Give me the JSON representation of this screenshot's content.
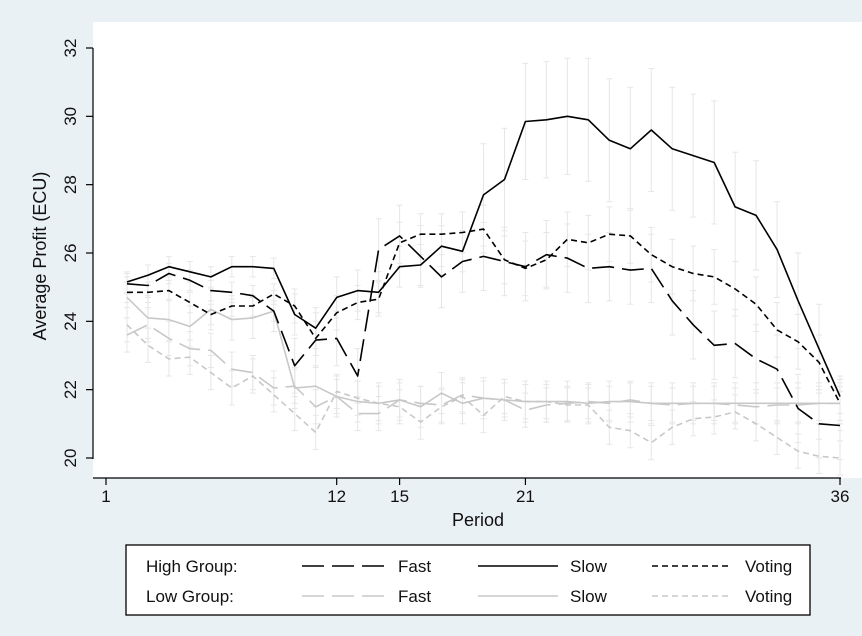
{
  "chart_data": {
    "type": "line",
    "title": "",
    "xlabel": "Period",
    "ylabel": "Average Profit (ECU)",
    "xlim": [
      1,
      36
    ],
    "ylim": [
      20,
      32
    ],
    "x_ticks": [
      1,
      12,
      15,
      21,
      36
    ],
    "y_ticks": [
      20,
      22,
      24,
      26,
      28,
      30,
      32
    ],
    "grid": false,
    "x": [
      2,
      3,
      4,
      5,
      6,
      7,
      8,
      9,
      10,
      11,
      12,
      13,
      14,
      15,
      16,
      17,
      18,
      19,
      20,
      21,
      22,
      23,
      24,
      25,
      26,
      27,
      28,
      29,
      30,
      31,
      32,
      33,
      34,
      35,
      36
    ],
    "series": [
      {
        "group": "High",
        "treatment": "Fast",
        "color": "#000000",
        "dash": "long",
        "values": [
          25.1,
          25.05,
          25.4,
          25.2,
          24.9,
          24.85,
          24.75,
          24.3,
          22.7,
          23.45,
          23.5,
          22.4,
          26.1,
          26.5,
          25.9,
          25.3,
          25.75,
          25.9,
          25.75,
          25.6,
          25.95,
          25.85,
          25.55,
          25.6,
          25.5,
          25.55,
          24.6,
          23.9,
          23.3,
          23.35,
          22.9,
          22.6,
          21.45,
          21.0,
          20.95
        ],
        "error": [
          0.3,
          0.3,
          0.3,
          0.3,
          0.3,
          0.3,
          0.3,
          0.3,
          0.8,
          0.8,
          0.8,
          0.8,
          0.9,
          0.9,
          0.9,
          0.9,
          0.9,
          1.0,
          1.0,
          1.0,
          1.0,
          1.0,
          1.0,
          1.0,
          1.0,
          1.0,
          1.0,
          1.0,
          1.0,
          1.0,
          1.0,
          1.0,
          1.0,
          1.0,
          1.0
        ]
      },
      {
        "group": "High",
        "treatment": "Slow",
        "color": "#000000",
        "dash": "solid",
        "values": [
          25.15,
          25.35,
          25.6,
          25.45,
          25.3,
          25.6,
          25.6,
          25.55,
          24.2,
          23.8,
          24.7,
          24.9,
          24.85,
          25.6,
          25.65,
          26.2,
          26.05,
          27.7,
          28.15,
          29.85,
          29.9,
          30.0,
          29.9,
          29.3,
          29.05,
          29.6,
          29.05,
          28.85,
          28.65,
          27.35,
          27.1,
          26.1,
          24.6,
          23.2,
          21.8
        ],
        "error": [
          0.3,
          0.3,
          0.3,
          0.3,
          0.3,
          0.3,
          0.3,
          0.3,
          0.6,
          0.6,
          0.6,
          0.6,
          0.6,
          0.6,
          0.6,
          0.6,
          0.6,
          1.5,
          1.5,
          1.7,
          1.7,
          1.7,
          1.8,
          1.8,
          1.8,
          1.8,
          1.8,
          1.8,
          1.8,
          1.6,
          1.6,
          1.4,
          1.4,
          1.3,
          0.5
        ]
      },
      {
        "group": "High",
        "treatment": "Voting",
        "color": "#000000",
        "dash": "short",
        "values": [
          24.85,
          24.85,
          24.9,
          24.55,
          24.2,
          24.45,
          24.45,
          24.8,
          24.45,
          23.5,
          24.25,
          24.55,
          24.65,
          26.3,
          26.55,
          26.55,
          26.6,
          26.7,
          25.8,
          25.55,
          25.8,
          26.4,
          26.3,
          26.55,
          26.5,
          25.95,
          25.6,
          25.4,
          25.3,
          24.95,
          24.5,
          23.75,
          23.4,
          22.8,
          21.6
        ],
        "error": [
          0.3,
          0.3,
          0.3,
          0.3,
          0.3,
          0.3,
          0.3,
          0.3,
          0.5,
          0.5,
          0.5,
          0.5,
          0.5,
          0.6,
          0.6,
          0.6,
          0.6,
          0.7,
          0.7,
          0.8,
          0.8,
          0.8,
          0.8,
          0.8,
          0.8,
          0.8,
          0.8,
          0.8,
          0.8,
          0.8,
          0.8,
          0.8,
          0.8,
          0.8,
          0.8
        ]
      },
      {
        "group": "Low",
        "treatment": "Fast",
        "color": "#c8c8c8",
        "dash": "long",
        "values": [
          23.6,
          23.9,
          23.5,
          23.2,
          23.15,
          22.6,
          22.5,
          22.05,
          22.1,
          21.5,
          21.8,
          21.3,
          21.3,
          21.7,
          21.6,
          21.55,
          21.85,
          21.75,
          21.7,
          21.4,
          21.55,
          21.6,
          21.65,
          21.6,
          21.7,
          21.6,
          21.55,
          21.6,
          21.6,
          21.55,
          21.5,
          21.55,
          21.55,
          21.6,
          21.6
        ],
        "error": [
          0.5,
          0.5,
          0.5,
          0.5,
          0.5,
          0.5,
          0.5,
          0.5,
          0.5,
          0.5,
          0.5,
          0.5,
          0.5,
          0.5,
          0.5,
          0.5,
          0.5,
          0.5,
          0.5,
          0.5,
          0.5,
          0.5,
          0.5,
          0.5,
          0.5,
          0.5,
          0.5,
          0.5,
          0.5,
          0.5,
          0.5,
          0.5,
          0.5,
          0.5,
          0.5
        ]
      },
      {
        "group": "Low",
        "treatment": "Slow",
        "color": "#c8c8c8",
        "dash": "solid",
        "values": [
          24.7,
          24.1,
          24.05,
          23.85,
          24.35,
          24.05,
          24.1,
          24.3,
          22.05,
          22.1,
          21.8,
          21.65,
          21.6,
          21.7,
          21.5,
          21.9,
          21.6,
          21.75,
          21.7,
          21.65,
          21.65,
          21.65,
          21.6,
          21.65,
          21.65,
          21.6,
          21.6,
          21.6,
          21.6,
          21.6,
          21.6,
          21.6,
          21.6,
          21.6,
          21.6
        ],
        "error": [
          0.6,
          0.6,
          0.6,
          0.6,
          0.6,
          0.6,
          0.6,
          0.6,
          0.6,
          0.6,
          0.6,
          0.6,
          0.6,
          0.6,
          0.6,
          0.6,
          0.6,
          0.6,
          0.6,
          0.6,
          0.6,
          0.6,
          0.6,
          0.6,
          0.6,
          0.6,
          0.6,
          0.6,
          0.6,
          0.6,
          0.6,
          0.6,
          0.6,
          0.6,
          0.6
        ]
      },
      {
        "group": "Low",
        "treatment": "Voting",
        "color": "#c8c8c8",
        "dash": "short",
        "values": [
          23.9,
          23.3,
          22.9,
          22.95,
          22.5,
          22.05,
          22.4,
          21.85,
          21.3,
          20.75,
          21.95,
          21.75,
          21.6,
          21.5,
          21.05,
          21.5,
          21.8,
          21.25,
          21.8,
          21.65,
          21.65,
          21.55,
          21.55,
          20.9,
          20.8,
          20.45,
          20.9,
          21.15,
          21.2,
          21.35,
          21.0,
          20.6,
          20.2,
          20.05,
          20.0
        ],
        "error": [
          0.5,
          0.5,
          0.5,
          0.5,
          0.5,
          0.5,
          0.5,
          0.5,
          0.5,
          0.5,
          0.5,
          0.5,
          0.5,
          0.5,
          0.5,
          0.5,
          0.5,
          0.5,
          0.5,
          0.5,
          0.5,
          0.5,
          0.5,
          0.5,
          0.5,
          0.5,
          0.5,
          0.5,
          0.5,
          0.5,
          0.5,
          0.5,
          0.5,
          0.5,
          0.5
        ]
      }
    ],
    "legend": {
      "position": "bottom",
      "rows": [
        {
          "label": "High Group:",
          "entries": [
            "Fast",
            "Slow",
            "Voting"
          ]
        },
        {
          "label": "Low Group:",
          "entries": [
            "Fast",
            "Slow",
            "Voting"
          ]
        }
      ]
    }
  },
  "colors": {
    "background": "#eaf1f4",
    "plot_background": "#ffffff",
    "high_group": "#000000",
    "low_group": "#c8c8c8",
    "error_bars": "#e6e6e6"
  }
}
